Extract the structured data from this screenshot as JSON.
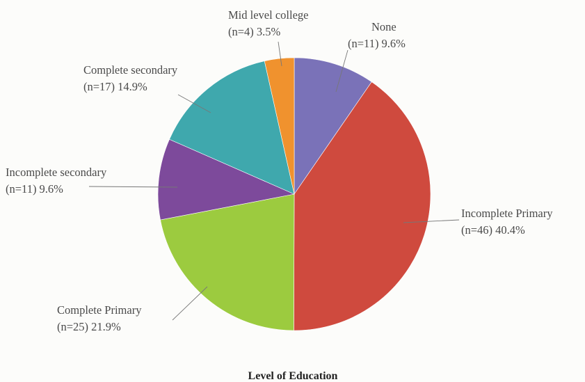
{
  "chart_data": {
    "type": "pie",
    "title": "Level of Education",
    "slices": [
      {
        "category": "None",
        "count_label": "(n=11) 9.6%",
        "n": 11,
        "percent": 9.6,
        "color": "#7a72b8"
      },
      {
        "category": "Incomplete Primary",
        "count_label": "(n=46) 40.4%",
        "n": 46,
        "percent": 40.4,
        "color": "#cf4a3e"
      },
      {
        "category": "Complete Primary",
        "count_label": "(n=25) 21.9%",
        "n": 25,
        "percent": 21.9,
        "color": "#9ccb3f"
      },
      {
        "category": "Incomplete secondary",
        "count_label": "(n=11) 9.6%",
        "n": 11,
        "percent": 9.6,
        "color": "#7d4a9b"
      },
      {
        "category": "Complete secondary",
        "count_label": "(n=17) 14.9%",
        "n": 17,
        "percent": 14.9,
        "color": "#3fa8ad"
      },
      {
        "category": "Mid level college",
        "count_label": "(n=4) 3.5%",
        "n": 4,
        "percent": 3.5,
        "color": "#f0922e"
      }
    ],
    "start_angle": "12 o'clock",
    "direction": "clockwise"
  }
}
